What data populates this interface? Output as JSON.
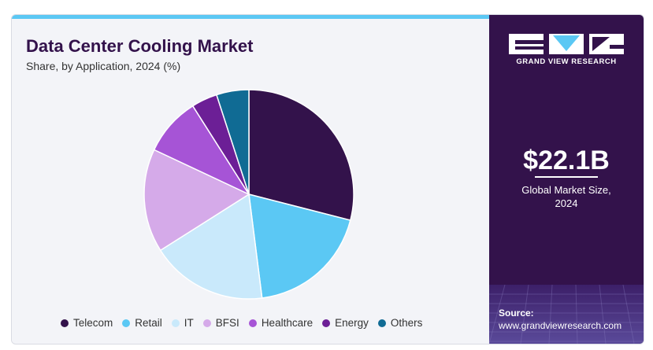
{
  "header": {
    "title": "Data Center Cooling Market",
    "subtitle": "Share, by Application, 2024 (%)"
  },
  "chart_data": {
    "type": "pie",
    "categories": [
      "Telecom",
      "Retail",
      "IT",
      "BFSI",
      "Healthcare",
      "Energy",
      "Others"
    ],
    "values": [
      29,
      19,
      18,
      16,
      9,
      4,
      5
    ],
    "colors": [
      "#33124b",
      "#5bc8f4",
      "#c9e9fb",
      "#d5aae9",
      "#a654d6",
      "#6c1f96",
      "#106b94"
    ],
    "start": "12 o'clock",
    "direction": "clockwise",
    "legend_position": "bottom"
  },
  "sidebar": {
    "brand": "GRAND VIEW RESEARCH",
    "stat_value": "$22.1B",
    "stat_label_line1": "Global Market Size,",
    "stat_label_line2": "2024",
    "source_label": "Source:",
    "source_url": "www.grandviewresearch.com"
  }
}
